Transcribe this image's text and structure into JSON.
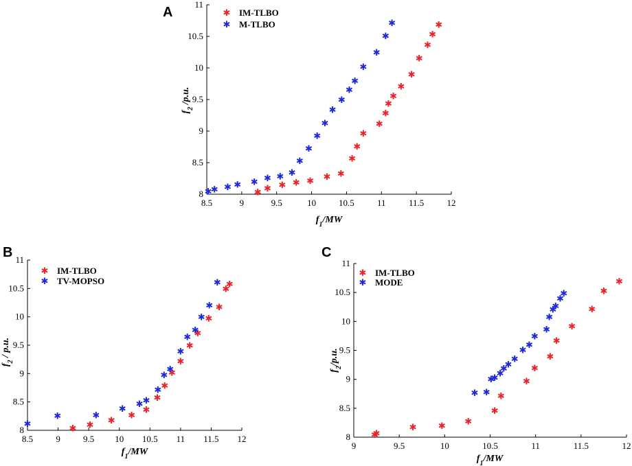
{
  "colors": {
    "red": "#e8252b",
    "blue": "#1f2ad6"
  },
  "chart_data": [
    {
      "panel": "A",
      "type": "scatter",
      "marker": "*",
      "xlabel": "f1/MW",
      "ylabel": "f2 /p.u.",
      "xlim": [
        8.5,
        12
      ],
      "ylim": [
        8,
        11
      ],
      "xticks": [
        8.5,
        9,
        9.5,
        10,
        10.5,
        11,
        11.5,
        12
      ],
      "yticks": [
        8,
        8.5,
        9,
        9.5,
        10,
        10.5,
        11
      ],
      "xtick_labels": [
        "8.5",
        "9",
        "9.5",
        "10",
        "10.5",
        "11",
        "11.5",
        "12"
      ],
      "ytick_labels": [
        "8",
        "8.5",
        "9",
        "9.5",
        "10",
        "10.5",
        "11"
      ],
      "legend": [
        "IM-TLBO",
        "M-TLBO"
      ],
      "series": [
        {
          "name": "IM-TLBO",
          "color": "red",
          "x": [
            9.23,
            9.37,
            9.58,
            9.78,
            9.98,
            10.22,
            10.42,
            10.58,
            10.65,
            10.74,
            10.97,
            11.06,
            11.1,
            11.17,
            11.28,
            11.43,
            11.54,
            11.66,
            11.73,
            11.82
          ],
          "y": [
            8.04,
            8.1,
            8.15,
            8.19,
            8.22,
            8.28,
            8.33,
            8.57,
            8.76,
            8.97,
            9.12,
            9.29,
            9.44,
            9.56,
            9.71,
            9.9,
            10.16,
            10.37,
            10.54,
            10.69
          ]
        },
        {
          "name": "M-TLBO",
          "color": "blue",
          "x": [
            8.52,
            8.61,
            8.8,
            8.94,
            9.18,
            9.37,
            9.55,
            9.72,
            9.83,
            9.96,
            10.08,
            10.19,
            10.3,
            10.43,
            10.54,
            10.62,
            10.74,
            10.93,
            11.06,
            11.15
          ],
          "y": [
            8.05,
            8.08,
            8.12,
            8.16,
            8.2,
            8.26,
            8.29,
            8.35,
            8.53,
            8.73,
            8.93,
            9.13,
            9.34,
            9.5,
            9.66,
            9.8,
            10.02,
            10.25,
            10.51,
            10.72
          ]
        }
      ]
    },
    {
      "panel": "B",
      "type": "scatter",
      "marker": "*",
      "xlabel": "f1/MW",
      "ylabel": "f2 / p.u.",
      "xlim": [
        8.5,
        12
      ],
      "ylim": [
        8,
        11
      ],
      "xticks": [
        8.5,
        9,
        9.5,
        10,
        10.5,
        11,
        11.5,
        12
      ],
      "yticks": [
        8,
        8.5,
        9,
        9.5,
        10,
        10.5,
        11
      ],
      "xtick_labels": [
        "8.5",
        "9",
        "9.5",
        "10",
        "10.5",
        "11",
        "11.5",
        "12"
      ],
      "ytick_labels": [
        "8",
        "8.5",
        "9",
        "9.5",
        "10",
        "10.5",
        "11"
      ],
      "legend": [
        "IM-TLBO",
        "TV-MOPSO"
      ],
      "series": [
        {
          "name": "IM-TLBO",
          "color": "red",
          "x": [
            9.24,
            9.52,
            9.87,
            10.2,
            10.44,
            10.62,
            10.74,
            10.86,
            11.0,
            11.15,
            11.28,
            11.46,
            11.63,
            11.74,
            11.8
          ],
          "y": [
            8.04,
            8.1,
            8.18,
            8.27,
            8.37,
            8.58,
            8.79,
            9.02,
            9.22,
            9.5,
            9.72,
            9.98,
            10.18,
            10.5,
            10.58
          ]
        },
        {
          "name": "TV-MOPSO",
          "color": "blue",
          "x": [
            8.5,
            8.99,
            9.62,
            10.05,
            10.33,
            10.44,
            10.63,
            10.73,
            10.83,
            11.0,
            11.11,
            11.24,
            11.34,
            11.47,
            11.6
          ],
          "y": [
            8.12,
            8.26,
            8.27,
            8.39,
            8.47,
            8.53,
            8.72,
            8.98,
            9.08,
            9.4,
            9.65,
            9.77,
            10.0,
            10.21,
            10.61
          ]
        }
      ]
    },
    {
      "panel": "C",
      "type": "scatter",
      "marker": "*",
      "xlabel": "f1/MW",
      "ylabel": "f2/p.u.",
      "xlim": [
        9,
        12
      ],
      "ylim": [
        8,
        11
      ],
      "xticks": [
        9,
        9.5,
        10,
        10.5,
        11,
        11.5,
        12
      ],
      "yticks": [
        8,
        8.5,
        9,
        9.5,
        10,
        10.5,
        11
      ],
      "xtick_labels": [
        "9",
        "9.5",
        "10",
        "10.5",
        "11",
        "11.5",
        "12"
      ],
      "ytick_labels": [
        "8",
        "8.5",
        "9",
        "9.5",
        "10",
        "10.5",
        "11"
      ],
      "legend": [
        "IM-TLBO",
        "MODE"
      ],
      "series": [
        {
          "name": "IM-TLBO",
          "color": "red",
          "x": [
            9.23,
            9.25,
            9.65,
            9.97,
            10.26,
            10.55,
            10.62,
            10.9,
            10.99,
            11.16,
            11.23,
            11.4,
            11.62,
            11.75,
            11.92
          ],
          "y": [
            8.05,
            8.07,
            8.18,
            8.2,
            8.28,
            8.46,
            8.72,
            8.97,
            9.2,
            9.4,
            9.67,
            9.92,
            10.22,
            10.53,
            10.7
          ],
          "_note": "values read from chart"
        },
        {
          "name": "MODE",
          "color": "blue",
          "x": [
            10.33,
            10.46,
            10.51,
            10.55,
            10.61,
            10.65,
            10.7,
            10.77,
            10.86,
            10.93,
            10.99,
            11.12,
            11.15,
            11.19,
            11.22,
            11.27,
            11.31
          ],
          "y": [
            8.77,
            8.78,
            9.01,
            9.03,
            9.11,
            9.19,
            9.26,
            9.36,
            9.51,
            9.6,
            9.75,
            9.87,
            10.08,
            10.21,
            10.27,
            10.4,
            10.49
          ]
        }
      ]
    }
  ]
}
